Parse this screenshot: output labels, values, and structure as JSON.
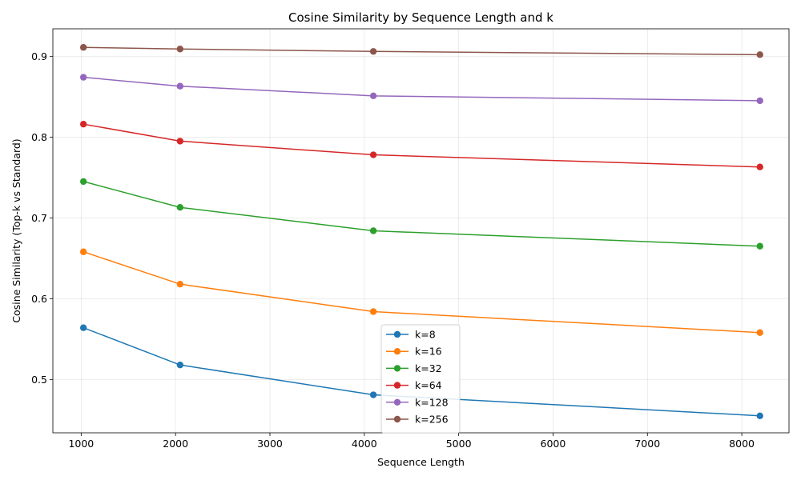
{
  "chart_data": {
    "type": "line",
    "title": "Cosine Similarity by Sequence Length and k",
    "xlabel": "Sequence Length",
    "ylabel": "Cosine Similarity (Top-k vs Standard)",
    "xlim": [
      700,
      8500
    ],
    "ylim": [
      0.434,
      0.934
    ],
    "xticks": [
      1000,
      2000,
      3000,
      4000,
      5000,
      6000,
      7000,
      8000
    ],
    "yticks": [
      0.5,
      0.6,
      0.7,
      0.8,
      0.9
    ],
    "xtick_labels": [
      "1000",
      "2000",
      "3000",
      "4000",
      "5000",
      "6000",
      "7000",
      "8000"
    ],
    "ytick_labels": [
      "0.5",
      "0.6",
      "0.7",
      "0.8",
      "0.9"
    ],
    "grid": true,
    "legend_position": "lower-center",
    "x": [
      1024,
      2048,
      4096,
      8192
    ],
    "series": [
      {
        "name": "k=8",
        "color": "#1f77b4",
        "values": [
          0.564,
          0.518,
          0.481,
          0.455
        ]
      },
      {
        "name": "k=16",
        "color": "#ff7f0e",
        "values": [
          0.658,
          0.618,
          0.584,
          0.558
        ]
      },
      {
        "name": "k=32",
        "color": "#2ca02c",
        "values": [
          0.745,
          0.713,
          0.684,
          0.665
        ]
      },
      {
        "name": "k=64",
        "color": "#d62728",
        "values": [
          0.816,
          0.795,
          0.778,
          0.763
        ]
      },
      {
        "name": "k=128",
        "color": "#9467bd",
        "values": [
          0.874,
          0.863,
          0.851,
          0.845
        ]
      },
      {
        "name": "k=256",
        "color": "#8c564b",
        "values": [
          0.911,
          0.909,
          0.906,
          0.902
        ]
      }
    ]
  }
}
